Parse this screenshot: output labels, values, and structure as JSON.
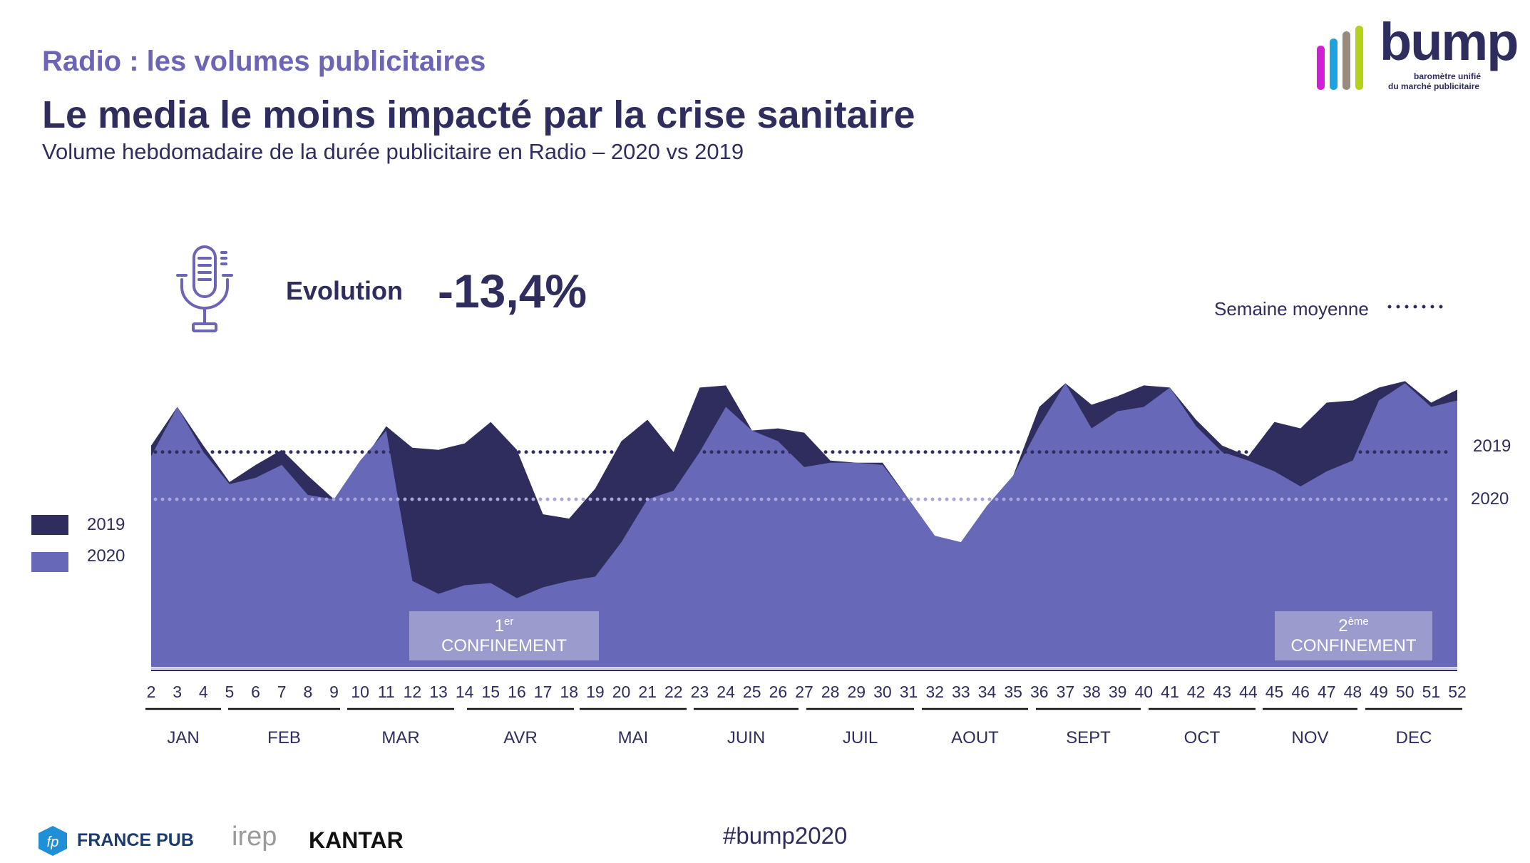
{
  "header": {
    "kicker": "Radio : les volumes publicitaires",
    "title": "Le media le moins impacté par la crise sanitaire",
    "subtitle": "Volume hebdomadaire de la durée publicitaire en Radio – 2020 vs 2019"
  },
  "logo": {
    "name": "bump",
    "tagline_1": "baromètre unifié",
    "tagline_2": "du marché publicitaire",
    "bar_colors": [
      "#d21fd6",
      "#1fa3e0",
      "#9a8a7e",
      "#b5d11d"
    ]
  },
  "evolution": {
    "icon": "microphone-icon",
    "label": "Evolution",
    "value": "-13,4%"
  },
  "footer": {
    "hashtag": "#bump2020",
    "logos": [
      "FRANCE PUB",
      "irep",
      "KANTAR"
    ]
  },
  "chart_data": {
    "type": "area",
    "title": "",
    "xlabel": "",
    "ylabel": "",
    "grid": false,
    "legend_position": "left",
    "average_legend_label": "Semaine moyenne",
    "x": [
      2,
      3,
      4,
      5,
      6,
      7,
      8,
      9,
      10,
      11,
      12,
      13,
      14,
      15,
      16,
      17,
      18,
      19,
      20,
      21,
      22,
      23,
      24,
      25,
      26,
      27,
      28,
      29,
      30,
      31,
      32,
      33,
      34,
      35,
      36,
      37,
      38,
      39,
      40,
      41,
      42,
      43,
      44,
      45,
      46,
      47,
      48,
      49,
      50,
      51,
      52
    ],
    "series": [
      {
        "name": "2019",
        "color": "#2e2d5e",
        "values": [
          103,
          121,
          103,
          86,
          94,
          101,
          89,
          78,
          94,
          112,
          102,
          101,
          104,
          114,
          101,
          71,
          69,
          83,
          105,
          115,
          100,
          130,
          131,
          110,
          111,
          109,
          96,
          95,
          95,
          78,
          61,
          58,
          75,
          89,
          121,
          132,
          122,
          126,
          131,
          130,
          115,
          103,
          98,
          114,
          111,
          123,
          124,
          130,
          133,
          123,
          129
        ],
        "average": 100
      },
      {
        "name": "2020",
        "color": "#6868b8",
        "values": [
          98,
          121,
          100,
          85,
          88,
          94,
          80,
          78,
          96,
          110,
          40,
          34,
          38,
          39,
          32,
          37,
          40,
          42,
          58,
          78,
          82,
          100,
          121,
          110,
          105,
          93,
          95,
          95,
          94,
          78,
          61,
          58,
          75,
          89,
          112,
          132,
          111,
          119,
          121,
          130,
          112,
          100,
          96,
          91,
          84,
          91,
          96,
          124,
          132,
          121,
          124
        ],
        "average": 78
      }
    ],
    "months": [
      {
        "label": "JAN"
      },
      {
        "label": "FEB"
      },
      {
        "label": "MAR"
      },
      {
        "label": "AVR"
      },
      {
        "label": "MAI"
      },
      {
        "label": "JUIN"
      },
      {
        "label": "JUIL"
      },
      {
        "label": "AOUT"
      },
      {
        "label": "SEPT"
      },
      {
        "label": "OCT"
      },
      {
        "label": "NOV"
      },
      {
        "label": "DEC"
      }
    ],
    "annotations": [
      {
        "ordinal": "1",
        "sup": "er",
        "text": "CONFINEMENT",
        "from_week": 12,
        "to_week": 19
      },
      {
        "ordinal": "2",
        "sup": "ème",
        "text": "CONFINEMENT",
        "from_week": 45,
        "to_week": 50
      }
    ]
  }
}
